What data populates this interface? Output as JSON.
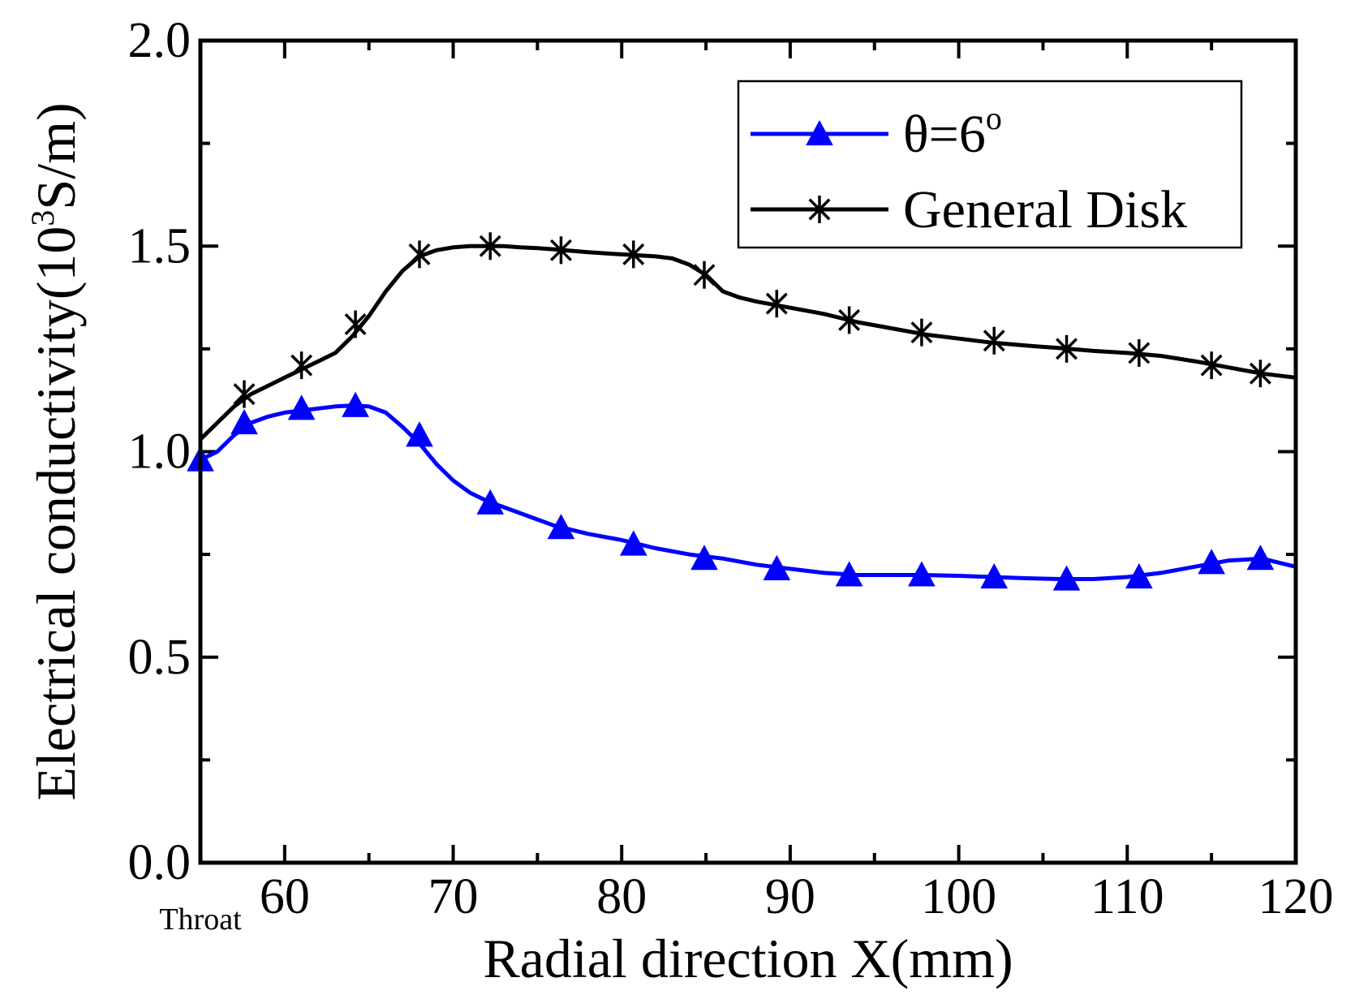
{
  "chart_data": {
    "type": "line",
    "xlabel": "Radial direction X(mm)",
    "ylabel_prefix": "Electrical conductivity(10",
    "ylabel_sup": "3",
    "ylabel_suffix": "S/m)",
    "xlim": [
      55,
      120
    ],
    "ylim": [
      0,
      2.0
    ],
    "x_ticks": [
      60,
      70,
      80,
      90,
      100,
      110,
      120
    ],
    "x_tick_labels": [
      "60",
      "70",
      "80",
      "90",
      "100",
      "110",
      "120"
    ],
    "y_ticks": [
      0,
      0.5,
      1.0,
      1.5,
      2.0
    ],
    "y_tick_labels": [
      "0.0",
      "0.5",
      "1.0",
      "1.5",
      "2.0"
    ],
    "x_minor_ticks": [
      65,
      75,
      85,
      95,
      105,
      115
    ],
    "y_minor_ticks": [
      0.25,
      0.75,
      1.25,
      1.75
    ],
    "throat_label": "Throat",
    "throat_x": 55,
    "legend": {
      "position": "top-right",
      "entries": [
        {
          "prefix": "θ=6",
          "sup": "o",
          "series": 0
        },
        {
          "prefix": "General Disk",
          "sup": "",
          "series": 1
        }
      ]
    },
    "series": [
      {
        "name": "θ=6°",
        "color": "#0000ff",
        "marker": "triangle",
        "curve": [
          [
            55,
            0.98
          ],
          [
            56,
            1.0
          ],
          [
            57,
            1.04
          ],
          [
            58,
            1.07
          ],
          [
            59,
            1.085
          ],
          [
            60,
            1.095
          ],
          [
            61,
            1.1
          ],
          [
            62,
            1.105
          ],
          [
            63,
            1.11
          ],
          [
            64,
            1.112
          ],
          [
            65,
            1.11
          ],
          [
            66,
            1.095
          ],
          [
            67,
            1.06
          ],
          [
            68,
            1.02
          ],
          [
            69,
            0.97
          ],
          [
            70,
            0.93
          ],
          [
            71,
            0.9
          ],
          [
            72,
            0.88
          ],
          [
            73,
            0.865
          ],
          [
            74,
            0.85
          ],
          [
            75,
            0.835
          ],
          [
            76,
            0.82
          ],
          [
            78,
            0.8
          ],
          [
            80,
            0.785
          ],
          [
            82,
            0.765
          ],
          [
            84,
            0.75
          ],
          [
            86,
            0.74
          ],
          [
            88,
            0.725
          ],
          [
            90,
            0.715
          ],
          [
            92,
            0.705
          ],
          [
            94,
            0.7
          ],
          [
            96,
            0.7
          ],
          [
            98,
            0.7
          ],
          [
            100,
            0.698
          ],
          [
            102,
            0.695
          ],
          [
            104,
            0.692
          ],
          [
            106,
            0.69
          ],
          [
            108,
            0.69
          ],
          [
            110,
            0.695
          ],
          [
            112,
            0.705
          ],
          [
            114,
            0.72
          ],
          [
            116,
            0.735
          ],
          [
            118,
            0.74
          ],
          [
            119,
            0.73
          ],
          [
            120,
            0.72
          ]
        ],
        "markers": [
          [
            55,
            0.98
          ],
          [
            57.6,
            1.07
          ],
          [
            61,
            1.105
          ],
          [
            64.2,
            1.112
          ],
          [
            68,
            1.04
          ],
          [
            72.2,
            0.875
          ],
          [
            76.4,
            0.815
          ],
          [
            80.7,
            0.775
          ],
          [
            84.9,
            0.74
          ],
          [
            89.2,
            0.715
          ],
          [
            93.5,
            0.7
          ],
          [
            97.8,
            0.7
          ],
          [
            102.1,
            0.695
          ],
          [
            106.4,
            0.69
          ],
          [
            110.7,
            0.695
          ],
          [
            115,
            0.73
          ],
          [
            117.9,
            0.74
          ]
        ]
      },
      {
        "name": "General Disk",
        "color": "#000000",
        "marker": "asterisk",
        "curve": [
          [
            55,
            1.03
          ],
          [
            56,
            1.07
          ],
          [
            57,
            1.11
          ],
          [
            58,
            1.14
          ],
          [
            59,
            1.16
          ],
          [
            60,
            1.18
          ],
          [
            61,
            1.2
          ],
          [
            62,
            1.22
          ],
          [
            63,
            1.24
          ],
          [
            64,
            1.28
          ],
          [
            65,
            1.33
          ],
          [
            66,
            1.39
          ],
          [
            67,
            1.44
          ],
          [
            68,
            1.475
          ],
          [
            69,
            1.49
          ],
          [
            70,
            1.497
          ],
          [
            71,
            1.5
          ],
          [
            72,
            1.5
          ],
          [
            73,
            1.5
          ],
          [
            74,
            1.497
          ],
          [
            75,
            1.495
          ],
          [
            76,
            1.492
          ],
          [
            78,
            1.485
          ],
          [
            80,
            1.48
          ],
          [
            82,
            1.475
          ],
          [
            83,
            1.47
          ],
          [
            84,
            1.455
          ],
          [
            85,
            1.43
          ],
          [
            86,
            1.39
          ],
          [
            87,
            1.375
          ],
          [
            88,
            1.365
          ],
          [
            90,
            1.35
          ],
          [
            92,
            1.335
          ],
          [
            94,
            1.315
          ],
          [
            96,
            1.3
          ],
          [
            98,
            1.285
          ],
          [
            100,
            1.275
          ],
          [
            102,
            1.265
          ],
          [
            104,
            1.258
          ],
          [
            106,
            1.252
          ],
          [
            108,
            1.245
          ],
          [
            110,
            1.24
          ],
          [
            112,
            1.233
          ],
          [
            114,
            1.22
          ],
          [
            116,
            1.205
          ],
          [
            118,
            1.19
          ],
          [
            120,
            1.18
          ]
        ],
        "markers": [
          [
            57.6,
            1.14
          ],
          [
            61,
            1.21
          ],
          [
            64.2,
            1.31
          ],
          [
            68,
            1.48
          ],
          [
            72.2,
            1.5
          ],
          [
            76.4,
            1.49
          ],
          [
            80.7,
            1.48
          ],
          [
            84.9,
            1.43
          ],
          [
            89.2,
            1.36
          ],
          [
            93.5,
            1.32
          ],
          [
            97.8,
            1.29
          ],
          [
            102.1,
            1.27
          ],
          [
            106.4,
            1.25
          ],
          [
            110.7,
            1.24
          ],
          [
            115,
            1.21
          ],
          [
            117.9,
            1.19
          ]
        ]
      }
    ]
  }
}
